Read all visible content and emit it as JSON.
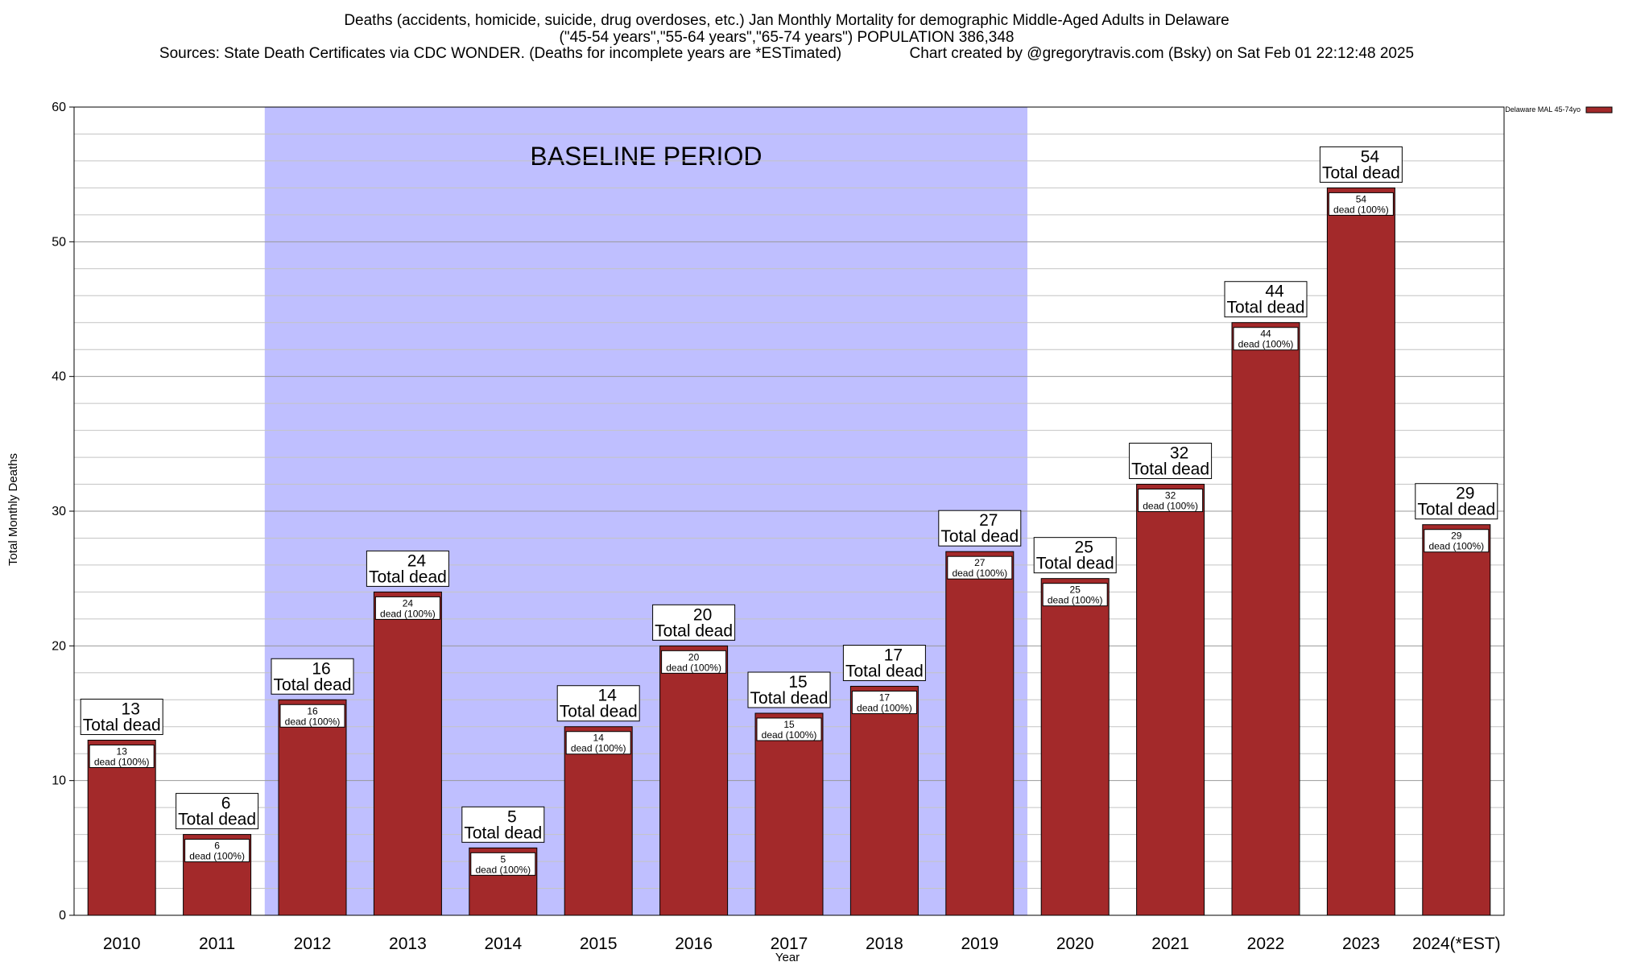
{
  "chart_data": {
    "type": "bar",
    "title_lines": [
      "Deaths (accidents, homicide, suicide, drug overdoses, etc.) Jan Monthly Mortality for demographic Middle-Aged Adults in Delaware",
      "(\"45-54 years\",\"55-64 years\",\"65-74 years\") POPULATION 386,348",
      "Sources: State Death Certificates via CDC WONDER. (Deaths for incomplete years are *ESTimated)                Chart created by @gregorytravis.com (Bsky) on Sat Feb 01 22:12:48 2025"
    ],
    "xlabel": "Year",
    "ylabel": "Total Monthly Deaths",
    "ylim": [
      0,
      60
    ],
    "y_ticks": [
      0,
      10,
      20,
      30,
      40,
      50,
      60
    ],
    "y_minor_step": 2,
    "categories": [
      "2010",
      "2011",
      "2012",
      "2013",
      "2014",
      "2015",
      "2016",
      "2017",
      "2018",
      "2019",
      "2020",
      "2021",
      "2022",
      "2023",
      "2024(*EST)"
    ],
    "series": [
      {
        "name": "Delaware MAL 45-74yo",
        "color": "#a3292a",
        "values": [
          13,
          6,
          16,
          24,
          5,
          14,
          20,
          15,
          17,
          27,
          25,
          32,
          44,
          54,
          29
        ]
      }
    ],
    "total_label_suffix": "Total dead",
    "inner_label_suffix": "dead (100%)",
    "baseline_period": {
      "label": "BASELINE PERIOD",
      "start_category": "2012",
      "end_category": "2019",
      "color": "#bfbfff"
    },
    "grid": true,
    "legend_position": "top-right"
  }
}
